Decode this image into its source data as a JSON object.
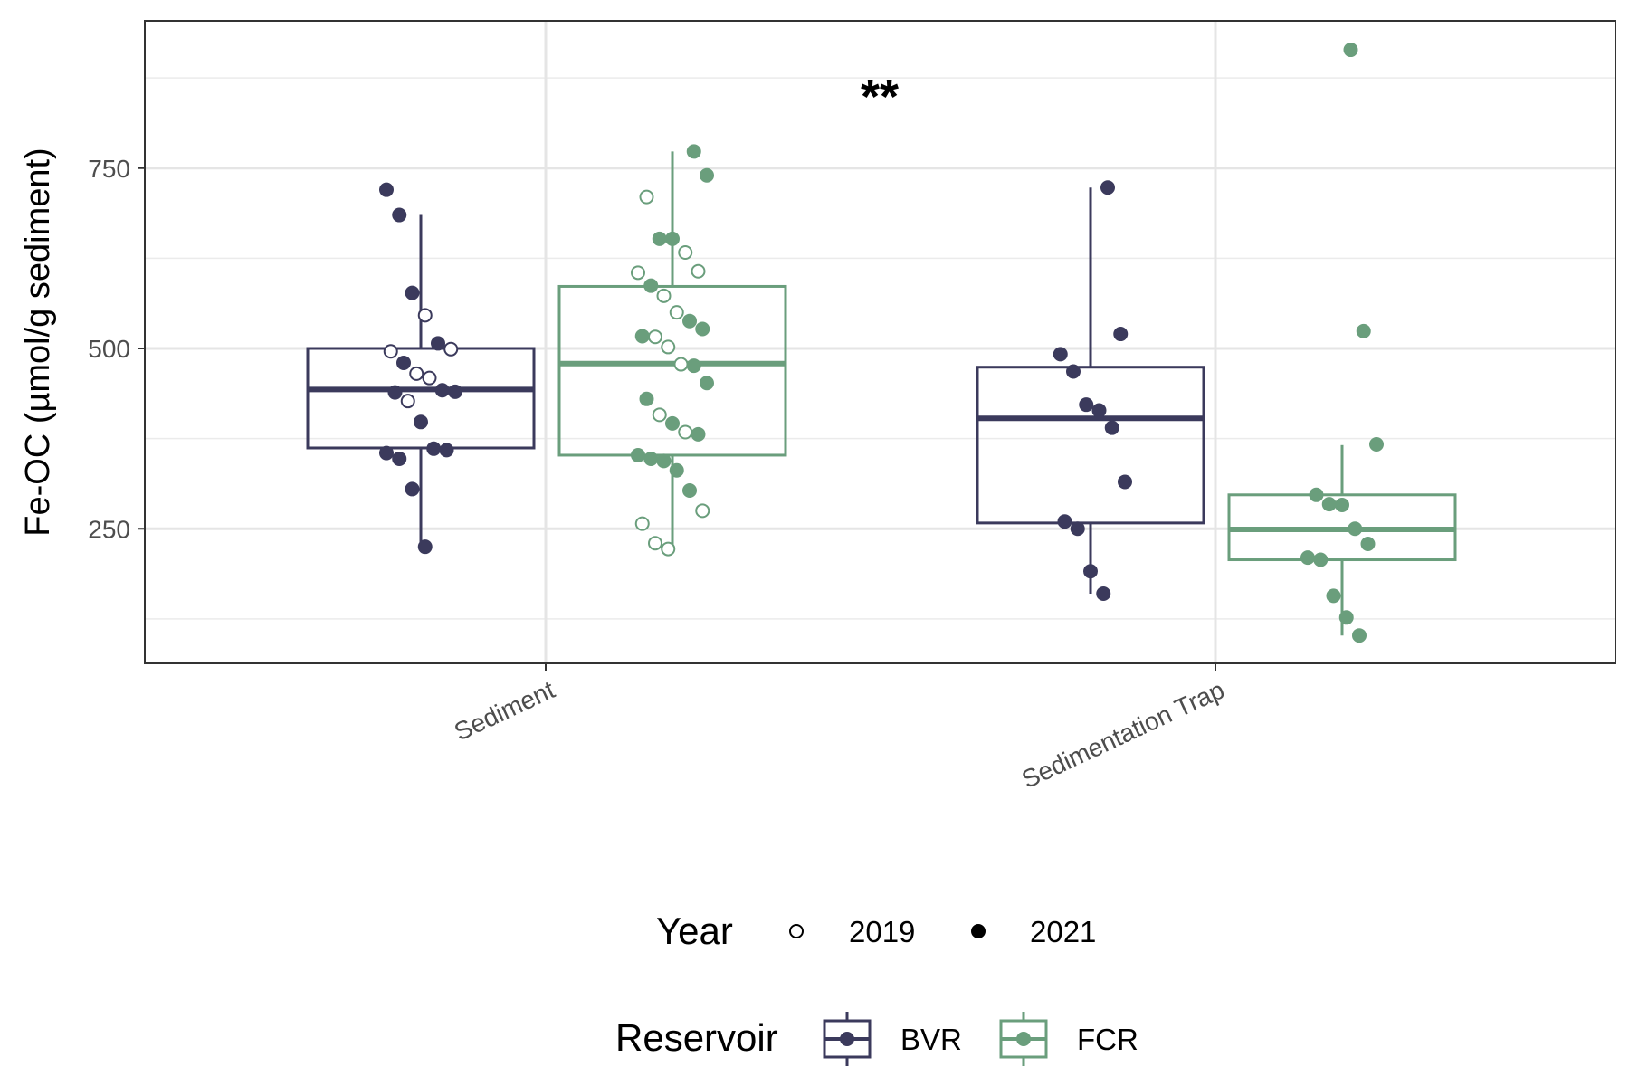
{
  "chart_data": {
    "type": "boxplot",
    "xlabel": "",
    "ylabel": "Fe-OC (µmol/g sediment)",
    "ylim": [
      90,
      930
    ],
    "yticks": [
      250,
      500,
      750
    ],
    "grid": true,
    "categories": [
      "Sediment",
      "Sedimentation Trap"
    ],
    "annotation": "**",
    "legends": [
      {
        "title": "Year",
        "entries": [
          {
            "label": "2019",
            "shape": "open-circle"
          },
          {
            "label": "2021",
            "shape": "filled-circle"
          }
        ]
      },
      {
        "title": "Reservoir",
        "entries": [
          {
            "label": "BVR",
            "color": "#3b3a5c"
          },
          {
            "label": "FCR",
            "color": "#6a9e7c"
          }
        ]
      }
    ],
    "series": [
      {
        "name": "BVR",
        "color": "#3b3a5c",
        "boxes": [
          {
            "category": "Sediment",
            "whisker_low": 225,
            "q1": 362,
            "median": 443,
            "q3": 500,
            "whisker_high": 685
          },
          {
            "category": "Sedimentation Trap",
            "whisker_low": 160,
            "q1": 258,
            "median": 403,
            "q3": 474,
            "whisker_high": 723
          }
        ],
        "points": [
          {
            "category": "Sediment",
            "year": "2021",
            "value": 720
          },
          {
            "category": "Sediment",
            "year": "2021",
            "value": 685
          },
          {
            "category": "Sediment",
            "year": "2021",
            "value": 577
          },
          {
            "category": "Sediment",
            "year": "2019",
            "value": 546
          },
          {
            "category": "Sediment",
            "year": "2021",
            "value": 507
          },
          {
            "category": "Sediment",
            "year": "2019",
            "value": 499
          },
          {
            "category": "Sediment",
            "year": "2019",
            "value": 496
          },
          {
            "category": "Sediment",
            "year": "2021",
            "value": 480
          },
          {
            "category": "Sediment",
            "year": "2019",
            "value": 465
          },
          {
            "category": "Sediment",
            "year": "2019",
            "value": 459
          },
          {
            "category": "Sediment",
            "year": "2021",
            "value": 442
          },
          {
            "category": "Sediment",
            "year": "2021",
            "value": 440
          },
          {
            "category": "Sediment",
            "year": "2021",
            "value": 439
          },
          {
            "category": "Sediment",
            "year": "2019",
            "value": 427
          },
          {
            "category": "Sediment",
            "year": "2021",
            "value": 398
          },
          {
            "category": "Sediment",
            "year": "2021",
            "value": 361
          },
          {
            "category": "Sediment",
            "year": "2021",
            "value": 359
          },
          {
            "category": "Sediment",
            "year": "2021",
            "value": 355
          },
          {
            "category": "Sediment",
            "year": "2021",
            "value": 347
          },
          {
            "category": "Sediment",
            "year": "2021",
            "value": 305
          },
          {
            "category": "Sediment",
            "year": "2021",
            "value": 225
          },
          {
            "category": "Sedimentation Trap",
            "year": "2021",
            "value": 723
          },
          {
            "category": "Sedimentation Trap",
            "year": "2021",
            "value": 520
          },
          {
            "category": "Sedimentation Trap",
            "year": "2021",
            "value": 492
          },
          {
            "category": "Sedimentation Trap",
            "year": "2021",
            "value": 468
          },
          {
            "category": "Sedimentation Trap",
            "year": "2021",
            "value": 422
          },
          {
            "category": "Sedimentation Trap",
            "year": "2021",
            "value": 414
          },
          {
            "category": "Sedimentation Trap",
            "year": "2021",
            "value": 390
          },
          {
            "category": "Sedimentation Trap",
            "year": "2021",
            "value": 315
          },
          {
            "category": "Sedimentation Trap",
            "year": "2021",
            "value": 260
          },
          {
            "category": "Sedimentation Trap",
            "year": "2021",
            "value": 250
          },
          {
            "category": "Sedimentation Trap",
            "year": "2021",
            "value": 191
          },
          {
            "category": "Sedimentation Trap",
            "year": "2021",
            "value": 160
          }
        ]
      },
      {
        "name": "FCR",
        "color": "#6a9e7c",
        "boxes": [
          {
            "category": "Sediment",
            "whisker_low": 222,
            "q1": 352,
            "median": 479,
            "q3": 586,
            "whisker_high": 773
          },
          {
            "category": "Sedimentation Trap",
            "whisker_low": 102,
            "q1": 207,
            "median": 249,
            "q3": 297,
            "whisker_high": 366
          }
        ],
        "points": [
          {
            "category": "Sediment",
            "year": "2021",
            "value": 773
          },
          {
            "category": "Sediment",
            "year": "2021",
            "value": 740
          },
          {
            "category": "Sediment",
            "year": "2019",
            "value": 710
          },
          {
            "category": "Sediment",
            "year": "2021",
            "value": 652
          },
          {
            "category": "Sediment",
            "year": "2021",
            "value": 652
          },
          {
            "category": "Sediment",
            "year": "2019",
            "value": 633
          },
          {
            "category": "Sediment",
            "year": "2019",
            "value": 607
          },
          {
            "category": "Sediment",
            "year": "2019",
            "value": 605
          },
          {
            "category": "Sediment",
            "year": "2021",
            "value": 587
          },
          {
            "category": "Sediment",
            "year": "2019",
            "value": 573
          },
          {
            "category": "Sediment",
            "year": "2019",
            "value": 550
          },
          {
            "category": "Sediment",
            "year": "2021",
            "value": 538
          },
          {
            "category": "Sediment",
            "year": "2021",
            "value": 527
          },
          {
            "category": "Sediment",
            "year": "2021",
            "value": 517
          },
          {
            "category": "Sediment",
            "year": "2019",
            "value": 516
          },
          {
            "category": "Sediment",
            "year": "2019",
            "value": 502
          },
          {
            "category": "Sediment",
            "year": "2019",
            "value": 478
          },
          {
            "category": "Sediment",
            "year": "2021",
            "value": 476
          },
          {
            "category": "Sediment",
            "year": "2021",
            "value": 452
          },
          {
            "category": "Sediment",
            "year": "2021",
            "value": 430
          },
          {
            "category": "Sediment",
            "year": "2019",
            "value": 408
          },
          {
            "category": "Sediment",
            "year": "2021",
            "value": 396
          },
          {
            "category": "Sediment",
            "year": "2019",
            "value": 384
          },
          {
            "category": "Sediment",
            "year": "2021",
            "value": 381
          },
          {
            "category": "Sediment",
            "year": "2021",
            "value": 352
          },
          {
            "category": "Sediment",
            "year": "2021",
            "value": 347
          },
          {
            "category": "Sediment",
            "year": "2021",
            "value": 344
          },
          {
            "category": "Sediment",
            "year": "2021",
            "value": 331
          },
          {
            "category": "Sediment",
            "year": "2021",
            "value": 303
          },
          {
            "category": "Sediment",
            "year": "2019",
            "value": 275
          },
          {
            "category": "Sediment",
            "year": "2019",
            "value": 257
          },
          {
            "category": "Sediment",
            "year": "2019",
            "value": 230
          },
          {
            "category": "Sediment",
            "year": "2019",
            "value": 222
          },
          {
            "category": "Sedimentation Trap",
            "year": "2021",
            "value": 914
          },
          {
            "category": "Sedimentation Trap",
            "year": "2021",
            "value": 524
          },
          {
            "category": "Sedimentation Trap",
            "year": "2021",
            "value": 367
          },
          {
            "category": "Sedimentation Trap",
            "year": "2021",
            "value": 297
          },
          {
            "category": "Sedimentation Trap",
            "year": "2021",
            "value": 284
          },
          {
            "category": "Sedimentation Trap",
            "year": "2021",
            "value": 283
          },
          {
            "category": "Sedimentation Trap",
            "year": "2021",
            "value": 250
          },
          {
            "category": "Sedimentation Trap",
            "year": "2021",
            "value": 229
          },
          {
            "category": "Sedimentation Trap",
            "year": "2021",
            "value": 210
          },
          {
            "category": "Sedimentation Trap",
            "year": "2021",
            "value": 207
          },
          {
            "category": "Sedimentation Trap",
            "year": "2021",
            "value": 157
          },
          {
            "category": "Sedimentation Trap",
            "year": "2021",
            "value": 127
          },
          {
            "category": "Sedimentation Trap",
            "year": "2021",
            "value": 102
          }
        ]
      }
    ]
  }
}
